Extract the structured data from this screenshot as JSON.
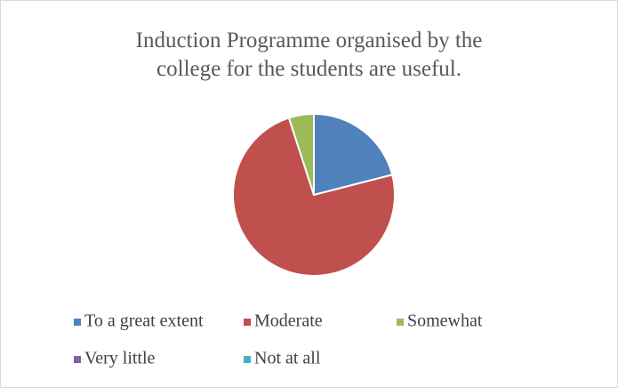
{
  "chart_data": {
    "type": "pie",
    "title": "Induction Programme organised by the college for the students are useful.",
    "categories": [
      "To a great extent",
      "Moderate",
      "Somewhat",
      "Very little",
      "Not at all"
    ],
    "values": [
      21,
      74,
      5,
      0,
      0
    ],
    "colors": [
      "#4f81bd",
      "#c0504d",
      "#9bbb59",
      "#8064a2",
      "#4bacc6"
    ],
    "legend": "bottom"
  }
}
